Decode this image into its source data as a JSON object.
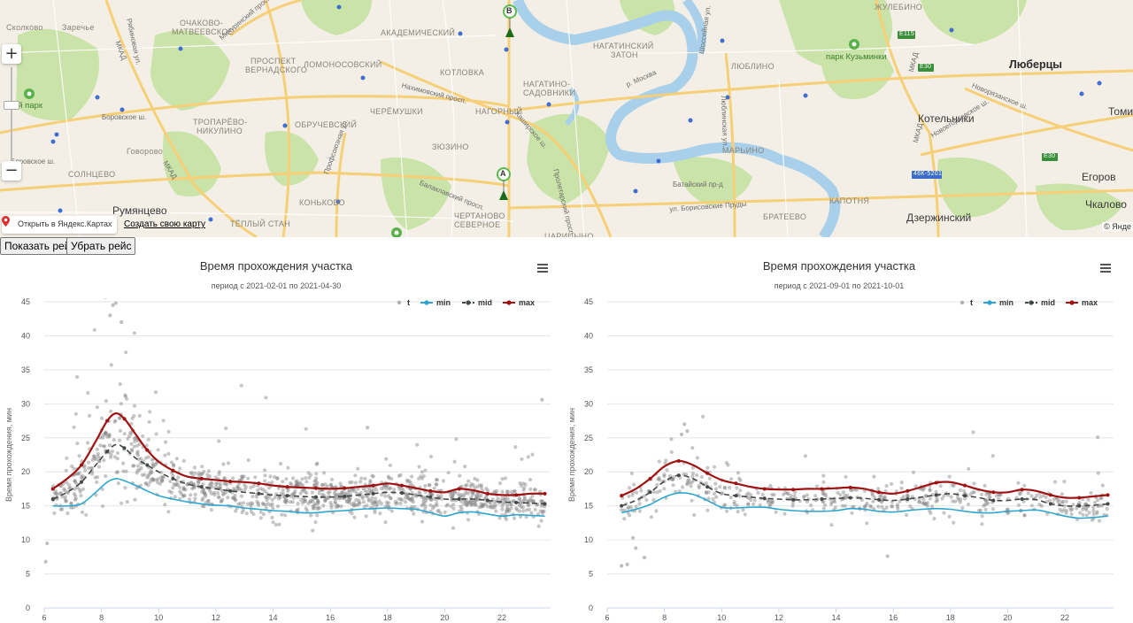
{
  "map": {
    "labels": [
      {
        "text": "Сколково",
        "cls": ""
      },
      {
        "text": "Заречье",
        "cls": ""
      },
      {
        "text": "ОЧАКОВО-",
        "cls": ""
      },
      {
        "text": "МАТВЕЕВСКОЕ",
        "cls": ""
      },
      {
        "text": "ПРОСПЕКТ",
        "cls": ""
      },
      {
        "text": "ВЕРНАДСКОГО",
        "cls": ""
      },
      {
        "text": "ЛОМОНОСОВСКИЙ",
        "cls": ""
      },
      {
        "text": "АКАДЕМИЧЕСКИЙ",
        "cls": ""
      },
      {
        "text": "КОТЛОВКА",
        "cls": ""
      },
      {
        "text": "НАГАТИНО-",
        "cls": ""
      },
      {
        "text": "САДОВНИКИ",
        "cls": ""
      },
      {
        "text": "НАГАТИНСКИЙ",
        "cls": ""
      },
      {
        "text": "ЗАТОН",
        "cls": ""
      },
      {
        "text": "ЛЮБЛИНО",
        "cls": ""
      },
      {
        "text": "ЖУЛЕБИНО",
        "cls": ""
      },
      {
        "text": "парк Кузьминки",
        "cls": "park"
      },
      {
        "text": "Люберцы",
        "cls": "city-big"
      },
      {
        "text": "Томи",
        "cls": "city"
      },
      {
        "text": "Котельники",
        "cls": "city"
      },
      {
        "text": "ТРОПАРЁВО-",
        "cls": ""
      },
      {
        "text": "НИКУЛИНО",
        "cls": ""
      },
      {
        "text": "ОБРУЧЕВСКИЙ",
        "cls": ""
      },
      {
        "text": "ЧЕРЁМУШКИ",
        "cls": ""
      },
      {
        "text": "НАГОРНЫЙ",
        "cls": ""
      },
      {
        "text": "ЗЮЗИНО",
        "cls": ""
      },
      {
        "text": "МАРЬИНО",
        "cls": ""
      },
      {
        "text": "СОЛНЦЕВО",
        "cls": ""
      },
      {
        "text": "Говорово",
        "cls": ""
      },
      {
        "text": "Румянцево",
        "cls": "city"
      },
      {
        "text": "ТЁПЛЫЙ СТАН",
        "cls": ""
      },
      {
        "text": "КОНЬКОВО",
        "cls": ""
      },
      {
        "text": "ЧЕРТАНОВО",
        "cls": ""
      },
      {
        "text": "СЕВЕРНОЕ",
        "cls": ""
      },
      {
        "text": "ЦАРИЦЫНО",
        "cls": ""
      },
      {
        "text": "БРАТЕЕВО",
        "cls": ""
      },
      {
        "text": "КАПОТНЯ",
        "cls": ""
      },
      {
        "text": "Дзержинский",
        "cls": "city"
      },
      {
        "text": "Егоров",
        "cls": "city"
      },
      {
        "text": "Чкалово",
        "cls": "city"
      },
      {
        "text": "ский парк",
        "cls": "park"
      },
      {
        "text": "Боровское ш.",
        "cls": "street"
      },
      {
        "text": "Боровское ш.",
        "cls": "street"
      },
      {
        "text": "Нахимовский просп.",
        "cls": "street"
      },
      {
        "text": "Балаклавский просп.",
        "cls": "street"
      },
      {
        "text": "Каширское ш.",
        "cls": "street"
      },
      {
        "text": "Шоссейная ул.",
        "cls": "street"
      },
      {
        "text": "Люблинская ул.",
        "cls": "street"
      },
      {
        "text": "Батайский пр-д",
        "cls": "street"
      },
      {
        "text": "ул. Борисовские Пруды",
        "cls": "street"
      },
      {
        "text": "Новорязанское ш.",
        "cls": "street"
      },
      {
        "text": "Новоегорьевское ш.",
        "cls": "street"
      },
      {
        "text": "МКАД",
        "cls": "street"
      },
      {
        "text": "МКАД",
        "cls": "street"
      },
      {
        "text": "МКАД",
        "cls": "street"
      },
      {
        "text": "МКАД",
        "cls": "street"
      },
      {
        "text": "Мичуринский просп.",
        "cls": "street"
      },
      {
        "text": "Профсоюзная ул.",
        "cls": "street"
      },
      {
        "text": "Пролетарский просп.",
        "cls": "street"
      },
      {
        "text": "р. Москва",
        "cls": "street"
      },
      {
        "text": "Рябиновая ул.",
        "cls": "street"
      }
    ],
    "route_signs": [
      "E115",
      "E30",
      "E30",
      "46К-5201"
    ],
    "markers": [
      "A",
      "B"
    ],
    "open_in_maps": "Открыть в Яндекс.Картах",
    "create_map": "Создать свою карту",
    "copyright": "© Янде"
  },
  "buttons": {
    "show_route": "Показать рейс",
    "remove_route": "Убрать рейс"
  },
  "colors": {
    "t": "#808080",
    "min": "#2fa6cf",
    "mid": "#434848",
    "max": "#a01212"
  },
  "chart_data": [
    {
      "type": "scatter",
      "title": "Время прохождения участка",
      "subtitle": "период с 2021-02-01 по 2021-04-30",
      "ylabel": "Время прохождения, мин",
      "xlabel": "",
      "xlim": [
        6,
        23.7
      ],
      "ylim": [
        0,
        45
      ],
      "xticks": [
        6,
        8,
        10,
        12,
        14,
        16,
        18,
        20,
        22
      ],
      "yticks": [
        0,
        5,
        10,
        15,
        20,
        25,
        30,
        35,
        40,
        45
      ],
      "legend": [
        "t",
        "min",
        "mid",
        "max"
      ],
      "legend_position": "top-right",
      "grid": true,
      "scatter_seed": 7,
      "scatter_count": 1200,
      "outliers": [
        [
          6.05,
          6.8
        ],
        [
          6.1,
          9.5
        ],
        [
          8.4,
          44.5
        ],
        [
          8.5,
          44.8
        ],
        [
          8.3,
          43.0
        ],
        [
          8.7,
          42.0
        ],
        [
          23.4,
          30.6
        ],
        [
          17.3,
          26.5
        ]
      ],
      "series": [
        {
          "name": "min",
          "x": [
            6.3,
            6.8,
            7.3,
            7.8,
            8.2,
            8.5,
            8.8,
            9.2,
            9.6,
            10.0,
            10.5,
            11.0,
            11.5,
            12.0,
            12.5,
            13.0,
            13.5,
            14.0,
            14.5,
            15.0,
            15.5,
            16.0,
            16.5,
            17.0,
            17.5,
            18.0,
            18.5,
            19.0,
            19.5,
            20.0,
            20.5,
            21.0,
            21.5,
            22.0,
            22.5,
            23.0,
            23.5
          ],
          "y": [
            15.0,
            15.0,
            15.3,
            17.0,
            18.5,
            19.0,
            18.7,
            18.0,
            17.2,
            16.5,
            16.0,
            15.6,
            15.3,
            15.1,
            15.0,
            14.7,
            14.5,
            14.3,
            14.2,
            14.0,
            14.0,
            14.2,
            14.3,
            14.5,
            14.6,
            14.7,
            14.6,
            14.5,
            14.0,
            13.5,
            14.0,
            14.1,
            13.8,
            13.5,
            13.7,
            13.6,
            13.5
          ]
        },
        {
          "name": "mid",
          "x": [
            6.3,
            6.8,
            7.3,
            7.8,
            8.2,
            8.5,
            8.8,
            9.2,
            9.6,
            10.0,
            10.5,
            11.0,
            11.5,
            12.0,
            12.5,
            13.0,
            13.5,
            14.0,
            14.5,
            15.0,
            15.5,
            16.0,
            16.5,
            17.0,
            17.5,
            18.0,
            18.5,
            19.0,
            19.5,
            20.0,
            20.5,
            21.0,
            21.5,
            22.0,
            22.5,
            23.0,
            23.5
          ],
          "y": [
            16.0,
            17.0,
            18.5,
            21.0,
            23.0,
            24.0,
            23.5,
            22.0,
            21.0,
            20.0,
            19.0,
            18.2,
            17.8,
            17.5,
            17.2,
            17.0,
            16.8,
            16.6,
            16.5,
            16.4,
            16.3,
            16.3,
            16.4,
            16.6,
            16.8,
            17.0,
            16.9,
            16.6,
            16.3,
            16.0,
            16.0,
            16.0,
            15.8,
            15.6,
            15.5,
            15.4,
            15.3
          ]
        },
        {
          "name": "max",
          "x": [
            6.3,
            6.8,
            7.3,
            7.8,
            8.2,
            8.5,
            8.8,
            9.2,
            9.6,
            10.0,
            10.5,
            11.0,
            11.5,
            12.0,
            12.5,
            13.0,
            13.5,
            14.0,
            14.5,
            15.0,
            15.5,
            16.0,
            16.5,
            17.0,
            17.5,
            18.0,
            18.5,
            19.0,
            19.5,
            20.0,
            20.5,
            21.0,
            21.5,
            22.0,
            22.5,
            23.0,
            23.5
          ],
          "y": [
            17.5,
            19.0,
            21.0,
            24.5,
            27.5,
            28.6,
            27.8,
            25.5,
            23.2,
            21.5,
            20.2,
            19.3,
            19.0,
            18.8,
            18.6,
            18.5,
            18.3,
            18.0,
            17.8,
            17.7,
            17.6,
            17.5,
            17.6,
            17.8,
            18.0,
            18.3,
            18.0,
            17.6,
            17.2,
            17.0,
            17.5,
            17.3,
            16.8,
            16.6,
            16.6,
            16.8,
            16.8
          ]
        }
      ]
    },
    {
      "type": "scatter",
      "title": "Время прохождения участка",
      "subtitle": "период с 2021-09-01 по 2021-10-01",
      "ylabel": "Время прохождения, мин",
      "xlabel": "",
      "xlim": [
        6,
        23.7
      ],
      "ylim": [
        0,
        45
      ],
      "xticks": [
        6,
        8,
        10,
        12,
        14,
        16,
        18,
        20,
        22
      ],
      "yticks": [
        0,
        5,
        10,
        15,
        20,
        25,
        30,
        35,
        40,
        45
      ],
      "legend": [
        "t",
        "min",
        "mid",
        "max"
      ],
      "legend_position": "top-right",
      "grid": true,
      "scatter_seed": 21,
      "scatter_count": 520,
      "outliers": [
        [
          6.5,
          6.2
        ],
        [
          6.7,
          6.4
        ],
        [
          7.3,
          7.4
        ],
        [
          15.8,
          7.6
        ],
        [
          8.7,
          27.0
        ],
        [
          8.8,
          26.0
        ],
        [
          8.6,
          25.5
        ],
        [
          7.0,
          8.8
        ],
        [
          6.9,
          10.3
        ]
      ],
      "series": [
        {
          "name": "min",
          "x": [
            6.5,
            7.0,
            7.5,
            8.0,
            8.5,
            9.0,
            9.5,
            10.0,
            10.5,
            11.0,
            11.5,
            12.0,
            12.5,
            13.0,
            13.5,
            14.0,
            14.5,
            15.0,
            15.5,
            16.0,
            16.5,
            17.0,
            17.5,
            18.0,
            18.5,
            19.0,
            19.5,
            20.0,
            20.5,
            21.0,
            21.5,
            22.0,
            22.5,
            23.0,
            23.5
          ],
          "y": [
            14.0,
            14.5,
            15.2,
            16.3,
            16.9,
            16.7,
            15.8,
            14.8,
            14.7,
            14.8,
            14.8,
            14.5,
            14.3,
            14.2,
            14.2,
            14.3,
            14.6,
            14.5,
            14.2,
            14.1,
            14.3,
            14.5,
            14.6,
            14.5,
            14.2,
            14.0,
            14.0,
            14.2,
            14.3,
            14.4,
            14.0,
            13.5,
            13.2,
            13.3,
            13.5
          ]
        },
        {
          "name": "mid",
          "x": [
            6.5,
            7.0,
            7.5,
            8.0,
            8.5,
            9.0,
            9.5,
            10.0,
            10.5,
            11.0,
            11.5,
            12.0,
            12.5,
            13.0,
            13.5,
            14.0,
            14.5,
            15.0,
            15.5,
            16.0,
            16.5,
            17.0,
            17.5,
            18.0,
            18.5,
            19.0,
            19.5,
            20.0,
            20.5,
            21.0,
            21.5,
            22.0,
            22.5,
            23.0,
            23.5
          ],
          "y": [
            15.0,
            15.8,
            17.0,
            18.6,
            19.5,
            19.0,
            17.8,
            16.8,
            16.5,
            16.3,
            16.1,
            16.0,
            15.9,
            15.9,
            16.0,
            16.1,
            16.2,
            16.1,
            15.9,
            15.8,
            16.0,
            16.3,
            16.6,
            16.8,
            16.5,
            16.2,
            15.8,
            15.8,
            16.0,
            15.9,
            15.3,
            15.0,
            15.0,
            15.1,
            15.3
          ]
        },
        {
          "name": "max",
          "x": [
            6.5,
            7.0,
            7.5,
            8.0,
            8.5,
            9.0,
            9.5,
            10.0,
            10.5,
            11.0,
            11.5,
            12.0,
            12.5,
            13.0,
            13.5,
            14.0,
            14.5,
            15.0,
            15.5,
            16.0,
            16.5,
            17.0,
            17.5,
            18.0,
            18.5,
            19.0,
            19.5,
            20.0,
            20.5,
            21.0,
            21.5,
            22.0,
            22.5,
            23.0,
            23.5
          ],
          "y": [
            16.5,
            17.5,
            19.0,
            20.8,
            21.6,
            21.0,
            19.8,
            18.8,
            18.3,
            17.8,
            17.5,
            17.4,
            17.4,
            17.5,
            17.5,
            17.6,
            17.7,
            17.5,
            17.0,
            16.8,
            17.2,
            17.8,
            18.4,
            18.5,
            18.0,
            17.4,
            17.0,
            17.0,
            17.4,
            17.2,
            16.6,
            16.2,
            16.2,
            16.4,
            16.6
          ]
        }
      ]
    }
  ]
}
